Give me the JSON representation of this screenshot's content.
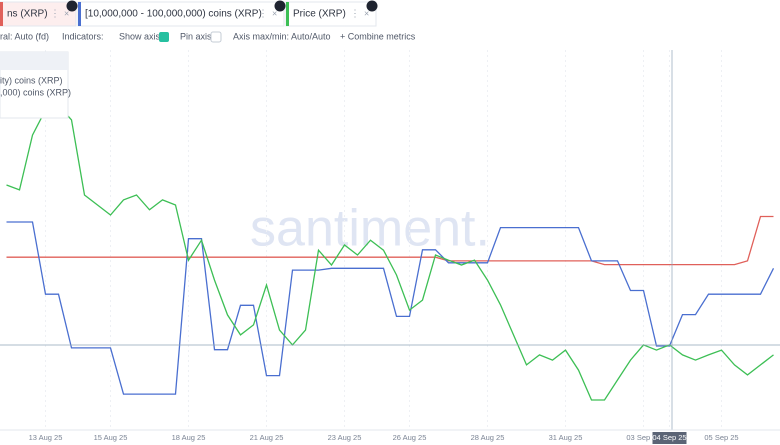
{
  "toolbar": {
    "items": [
      "ral: Auto (fd)",
      "Indicators:",
      "Show axis",
      "Pin axis",
      "Axis max/min: Auto/Auto",
      "+ Combine metrics"
    ]
  },
  "legend_box": [
    "ity) coins (XRP)",
    ",000) coins (XRP)"
  ],
  "watermark": "santiment.",
  "chart_data": {
    "type": "line",
    "categories": [
      null,
      null,
      null,
      "13 Aug 25",
      null,
      null,
      null,
      null,
      "15 Aug 25",
      null,
      null,
      null,
      null,
      null,
      "18 Aug 25",
      null,
      null,
      null,
      null,
      null,
      "21 Aug 25",
      null,
      null,
      null,
      null,
      null,
      "23 Aug 25",
      null,
      null,
      null,
      null,
      "26 Aug 25",
      null,
      null,
      null,
      null,
      null,
      "28 Aug 25",
      null,
      null,
      null,
      null,
      null,
      "31 Aug 25",
      null,
      null,
      null,
      null,
      null,
      "03 Sep 25",
      null,
      "04 Sep 25",
      null,
      null,
      null,
      "05 Sep 25",
      null,
      null,
      null,
      null
    ],
    "highlight_category": 51,
    "ylim": [
      0,
      100
    ],
    "series": [
      {
        "name": "ns (XRP)",
        "color": "#e0605a",
        "values": [
          44,
          44,
          44,
          44,
          44,
          44,
          44,
          44,
          44,
          44,
          44,
          44,
          44,
          44,
          44,
          44,
          44,
          44,
          44,
          44,
          44,
          44,
          44,
          44,
          44,
          44,
          44,
          44,
          44,
          44,
          44,
          44,
          44,
          44,
          43,
          43,
          43,
          43,
          43,
          43,
          43,
          43,
          43,
          43,
          43,
          43,
          42,
          42,
          42,
          42,
          42,
          42,
          42,
          42,
          42,
          42,
          42,
          43,
          55,
          55
        ]
      },
      {
        "name": "[10,000,000 - 100,000,000) coins (XRP)",
        "color": "#4a6fd0",
        "values": [
          53.5,
          53.5,
          53.5,
          34,
          34,
          19.5,
          19.5,
          19.5,
          19.5,
          7,
          7,
          7,
          7,
          7,
          49,
          49,
          19,
          19,
          31,
          31,
          12,
          12,
          40.5,
          40.5,
          40.5,
          41,
          41,
          41,
          41,
          41,
          28,
          28,
          46,
          46,
          42.5,
          42.5,
          42.5,
          42.5,
          52,
          52,
          52,
          52,
          52,
          52,
          52,
          43,
          43,
          43,
          35,
          35,
          20,
          20,
          28.5,
          28.5,
          34,
          34,
          34,
          34,
          34,
          41
        ]
      },
      {
        "name": "Price (XRP)",
        "color": "#3dbf55",
        "values": [
          63.5,
          62.2,
          77,
          83.8,
          85.1,
          81.1,
          60.8,
          58.1,
          55.4,
          59.5,
          60.8,
          56.8,
          59.5,
          58.1,
          43.2,
          48.6,
          37.8,
          28.4,
          23,
          25.7,
          36.5,
          24.3,
          20.3,
          24.3,
          45.9,
          41.9,
          47.3,
          44.6,
          48.6,
          45.9,
          39.2,
          29.7,
          32.4,
          44.6,
          43.2,
          41.9,
          43.2,
          37.8,
          31.1,
          23,
          14.9,
          17.6,
          16.2,
          18.9,
          13.5,
          5.4,
          5.4,
          10.8,
          16.2,
          20.3,
          18.9,
          20.3,
          17.6,
          16.2,
          17.6,
          18.9,
          14.9,
          12.2,
          14.9,
          17.6
        ]
      }
    ]
  }
}
